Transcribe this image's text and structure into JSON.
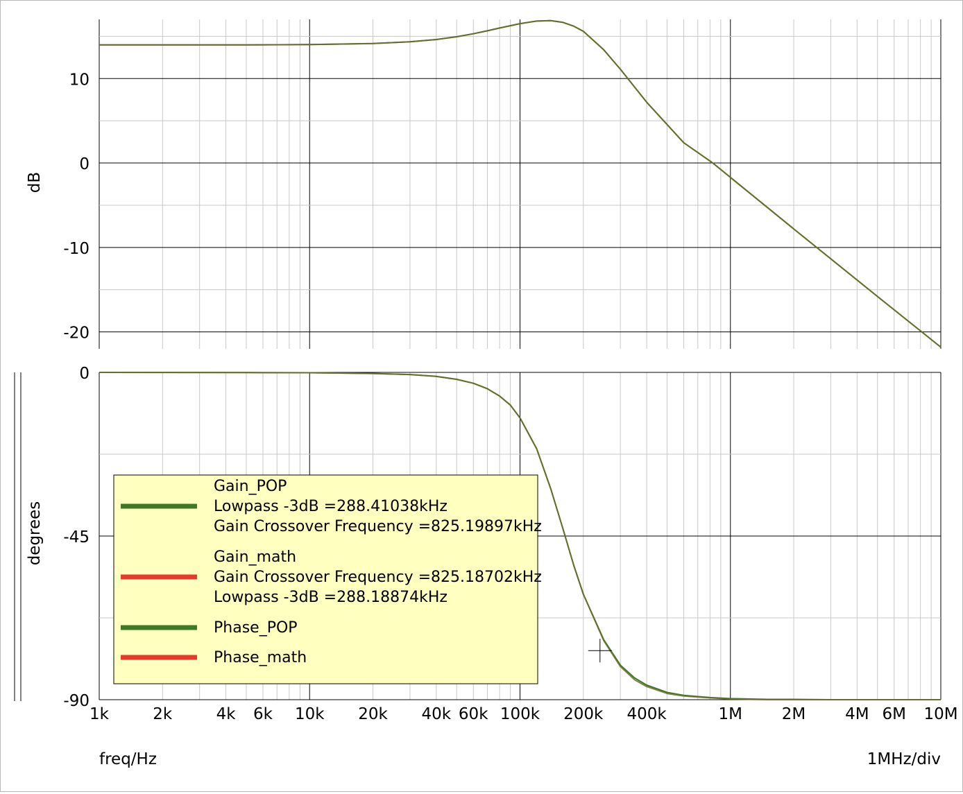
{
  "chart_data": [
    {
      "type": "line",
      "panel": "gain",
      "ylabel": "dB",
      "xscale": "log",
      "xlim": [
        1000,
        10000000
      ],
      "ylim": [
        -22,
        17
      ],
      "yticks": [
        10,
        0,
        -10,
        -20
      ],
      "grid": true,
      "series": [
        {
          "name": "Gain_POP",
          "color": "#3c7a25",
          "x": [
            1000,
            2000,
            5000,
            10000,
            20000,
            30000,
            40000,
            50000,
            60000,
            70000,
            80000,
            100000,
            120000,
            140000,
            160000,
            180000,
            200000,
            250000,
            300000,
            400000,
            600000,
            825000,
            1000000,
            2000000,
            5000000,
            10000000
          ],
          "y": [
            13.98,
            13.98,
            13.99,
            14.02,
            14.15,
            14.35,
            14.62,
            14.95,
            15.3,
            15.65,
            15.98,
            16.5,
            16.8,
            16.85,
            16.65,
            16.2,
            15.6,
            13.4,
            11.1,
            7.2,
            2.4,
            0.0,
            -1.7,
            -7.8,
            -15.8,
            -21.8
          ]
        },
        {
          "name": "Gain_math",
          "color": "#e83a2a",
          "x": [
            1000,
            2000,
            5000,
            10000,
            20000,
            30000,
            40000,
            50000,
            60000,
            70000,
            80000,
            100000,
            120000,
            140000,
            160000,
            180000,
            200000,
            250000,
            300000,
            400000,
            600000,
            825000,
            1000000,
            2000000,
            5000000,
            10000000
          ],
          "y": [
            13.98,
            13.98,
            13.99,
            14.02,
            14.15,
            14.35,
            14.62,
            14.95,
            15.3,
            15.65,
            15.98,
            16.5,
            16.8,
            16.85,
            16.65,
            16.2,
            15.6,
            13.4,
            11.1,
            7.2,
            2.4,
            0.0,
            -1.7,
            -7.8,
            -15.8,
            -21.8
          ]
        }
      ]
    },
    {
      "type": "line",
      "panel": "phase",
      "ylabel": "degrees",
      "xlabel": "freq/Hz",
      "xscale": "log",
      "xlim": [
        1000,
        10000000
      ],
      "ylim": [
        -90,
        0
      ],
      "yticks": [
        0,
        -45,
        -90
      ],
      "xtick_labels": [
        {
          "v": 1000,
          "t": "1k"
        },
        {
          "v": 2000,
          "t": "2k"
        },
        {
          "v": 4000,
          "t": "4k"
        },
        {
          "v": 6000,
          "t": "6k"
        },
        {
          "v": 10000,
          "t": "10k"
        },
        {
          "v": 20000,
          "t": "20k"
        },
        {
          "v": 40000,
          "t": "40k"
        },
        {
          "v": 60000,
          "t": "60k"
        },
        {
          "v": 100000,
          "t": "100k"
        },
        {
          "v": 200000,
          "t": "200k"
        },
        {
          "v": 400000,
          "t": "400k"
        },
        {
          "v": 1000000,
          "t": "1M"
        },
        {
          "v": 2000000,
          "t": "2M"
        },
        {
          "v": 4000000,
          "t": "4M"
        },
        {
          "v": 6000000,
          "t": "6M"
        },
        {
          "v": 10000000,
          "t": "10M"
        }
      ],
      "division_label": "1MHz/div",
      "grid": true,
      "cursor": {
        "x": 240000,
        "y": -76.5
      },
      "series": [
        {
          "name": "Phase_POP",
          "color": "#3c7a25",
          "x": [
            1000,
            5000,
            10000,
            20000,
            30000,
            40000,
            50000,
            60000,
            70000,
            80000,
            90000,
            100000,
            120000,
            140000,
            160000,
            180000,
            200000,
            250000,
            300000,
            350000,
            400000,
            500000,
            600000,
            800000,
            1000000,
            1500000,
            2000000,
            3000000,
            5000000,
            7000000,
            10000000
          ],
          "y": [
            0,
            -0.05,
            -0.1,
            -0.3,
            -0.6,
            -1.1,
            -1.9,
            -3.0,
            -4.5,
            -6.5,
            -9.0,
            -12.5,
            -21.0,
            -32.0,
            -43.0,
            -53.0,
            -61.0,
            -73.5,
            -80.5,
            -84.0,
            -86.0,
            -88.0,
            -88.8,
            -89.4,
            -89.7,
            -89.9,
            -89.9,
            -90.0,
            -90.0,
            -90.0,
            -90.0
          ]
        },
        {
          "name": "Phase_math",
          "color": "#e83a2a",
          "x": [
            1000,
            5000,
            10000,
            20000,
            30000,
            40000,
            50000,
            60000,
            70000,
            80000,
            90000,
            100000,
            120000,
            140000,
            160000,
            180000,
            200000,
            250000,
            300000,
            350000,
            400000,
            500000,
            600000,
            800000,
            1000000,
            1500000,
            2000000,
            3000000,
            5000000,
            7000000,
            10000000
          ],
          "y": [
            0,
            -0.05,
            -0.1,
            -0.3,
            -0.6,
            -1.1,
            -1.9,
            -3.0,
            -4.5,
            -6.5,
            -9.0,
            -12.5,
            -21.0,
            -32.0,
            -43.0,
            -53.0,
            -61.0,
            -73.8,
            -80.9,
            -84.5,
            -86.4,
            -88.3,
            -89.0,
            -89.5,
            -89.8,
            -90.0,
            -90.0,
            -90.0,
            -90.0,
            -90.0,
            -90.0
          ]
        }
      ]
    }
  ],
  "legend": {
    "background": "#ffffc0",
    "entries": [
      {
        "name": "Gain_POP",
        "color": "#3c7a25",
        "lines": [
          "Lowpass -3dB =288.41038kHz",
          "Gain Crossover Frequency =825.19897kHz"
        ]
      },
      {
        "name": "Gain_math",
        "color": "#e83a2a",
        "lines": [
          "Gain Crossover Frequency =825.18702kHz",
          "Lowpass -3dB =288.18874kHz"
        ]
      },
      {
        "name": "Phase_POP",
        "color": "#3c7a25",
        "lines": []
      },
      {
        "name": "Phase_math",
        "color": "#e83a2a",
        "lines": []
      }
    ]
  }
}
